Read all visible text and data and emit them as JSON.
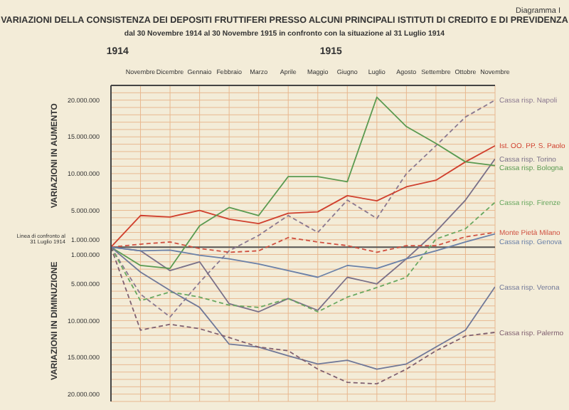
{
  "chart_data": {
    "type": "line",
    "title": "VARIAZIONI DELLA CONSISTENZA DEI DEPOSITI FRUTTIFERI PRESSO ALCUNI PRINCIPALI ISTITUTI DI CREDITO E DI PREVIDENZA",
    "subtitle": "dal 30 Novembre 1914 al 30 Novembre 1915 in confronto con la situazione al 31 Luglio 1914",
    "ylabel": "VARIAZIONI IN AUMENTO",
    "annotations": [
      "Diagramma I",
      "1914",
      "1915",
      "VARIAZIONI IN DIMINUZIONE"
    ],
    "categories": [
      null,
      "Novembre",
      "Dicembre",
      "Gennaio",
      "Febbraio",
      "Marzo",
      "Aprile",
      "Maggio",
      "Giugno",
      "Luglio",
      "Agosto",
      "Settembre",
      "Ottobre",
      "Novembre"
    ],
    "series": [
      {
        "name": "Cassa risp. Napoli",
        "color": "#8a7890",
        "line_style": "dashed",
        "values": [
          0,
          -6400000,
          -9500000,
          -4800000,
          -500000,
          1600000,
          4300000,
          2000000,
          6400000,
          3900000,
          10000000,
          13800000,
          17700000,
          20000000
        ]
      },
      {
        "name": "Ist. OO. PP. S. Paolo",
        "color": "#d0402e",
        "line_style": "solid",
        "values": [
          0,
          4300000,
          4100000,
          5000000,
          3800000,
          3200000,
          4600000,
          4800000,
          7000000,
          6300000,
          8200000,
          9100000,
          11600000,
          13800000
        ]
      },
      {
        "name": "Cassa risp. Torino",
        "color": "#7a7088",
        "line_style": "solid",
        "values": [
          0,
          -500000,
          -3200000,
          -2000000,
          -7700000,
          -8800000,
          -7000000,
          -8600000,
          -4100000,
          -5000000,
          -1600000,
          2100000,
          6400000,
          12000000
        ]
      },
      {
        "name": "Cassa risp. Bologna",
        "color": "#5a9a50",
        "line_style": "solid",
        "values": [
          0,
          -2500000,
          -2900000,
          2900000,
          5400000,
          4300000,
          9600000,
          9600000,
          8900000,
          20400000,
          16400000,
          14100000,
          11600000,
          11100000
        ]
      },
      {
        "name": "Cassa risp. Firenze",
        "color": "#6aa860",
        "line_style": "dashed",
        "values": [
          0,
          -7300000,
          -6100000,
          -6800000,
          -7900000,
          -8200000,
          -7000000,
          -8800000,
          -6800000,
          -5500000,
          -4100000,
          1100000,
          2500000,
          6100000
        ]
      },
      {
        "name": "Monte Pietà Milano",
        "color": "#d05040",
        "line_style": "dashed",
        "values": [
          0,
          400000,
          700000,
          -200000,
          -700000,
          -500000,
          1300000,
          700000,
          200000,
          -700000,
          200000,
          200000,
          1400000,
          2000000
        ]
      },
      {
        "name": "Cassa risp. Genova",
        "color": "#6a80a8",
        "line_style": "solid",
        "values": [
          0,
          -500000,
          -400000,
          -1100000,
          -1600000,
          -2300000,
          -3200000,
          -4100000,
          -2500000,
          -2900000,
          -1600000,
          -500000,
          700000,
          1800000
        ]
      },
      {
        "name": "Cassa risp. Verona",
        "color": "#707898",
        "line_style": "solid",
        "values": [
          0,
          -3400000,
          -5900000,
          -8200000,
          -13200000,
          -13600000,
          -14800000,
          -15900000,
          -15400000,
          -16600000,
          -15900000,
          -13600000,
          -11300000,
          -5400000
        ]
      },
      {
        "name": "Cassa risp. Palermo",
        "color": "#806070",
        "line_style": "dashed",
        "values": [
          0,
          -11300000,
          -10500000,
          -11100000,
          -12300000,
          -13600000,
          -14100000,
          -16600000,
          -18400000,
          -18600000,
          -16600000,
          -14100000,
          -12100000,
          -11600000
        ]
      }
    ],
    "ylim": [
      -21000000,
      22000000
    ],
    "yticks": [
      {
        "value": -21000000,
        "label": null
      },
      {
        "value": -20000000,
        "label": "20.000.000"
      },
      {
        "value": -19000000,
        "label": null
      },
      {
        "value": -18000000,
        "label": null
      },
      {
        "value": -17000000,
        "label": null
      },
      {
        "value": -16000000,
        "label": null
      },
      {
        "value": -15000000,
        "label": "15.000.000"
      },
      {
        "value": -14000000,
        "label": null
      },
      {
        "value": -13000000,
        "label": null
      },
      {
        "value": -12000000,
        "label": null
      },
      {
        "value": -11000000,
        "label": null
      },
      {
        "value": -10000000,
        "label": "10.000.000"
      },
      {
        "value": -9000000,
        "label": null
      },
      {
        "value": -8000000,
        "label": null
      },
      {
        "value": -7000000,
        "label": null
      },
      {
        "value": -6000000,
        "label": null
      },
      {
        "value": -5000000,
        "label": "5.000.000"
      },
      {
        "value": -4000000,
        "label": null
      },
      {
        "value": -3000000,
        "label": null
      },
      {
        "value": -2000000,
        "label": null
      },
      {
        "value": -1000000,
        "label": "1.000.000"
      },
      {
        "value": 0,
        "label": null
      },
      {
        "value": 1000000,
        "label": "1.000.000"
      },
      {
        "value": 2000000,
        "label": null
      },
      {
        "value": 3000000,
        "label": null
      },
      {
        "value": 4000000,
        "label": null
      },
      {
        "value": 5000000,
        "label": "5.000.000"
      },
      {
        "value": 6000000,
        "label": null
      },
      {
        "value": 7000000,
        "label": null
      },
      {
        "value": 8000000,
        "label": null
      },
      {
        "value": 9000000,
        "label": null
      },
      {
        "value": 10000000,
        "label": "10.000.000"
      },
      {
        "value": 11000000,
        "label": null
      },
      {
        "value": 12000000,
        "label": null
      },
      {
        "value": 13000000,
        "label": null
      },
      {
        "value": 14000000,
        "label": null
      },
      {
        "value": 15000000,
        "label": "15.000.000"
      },
      {
        "value": 16000000,
        "label": null
      },
      {
        "value": 17000000,
        "label": null
      },
      {
        "value": 18000000,
        "label": null
      },
      {
        "value": 19000000,
        "label": null
      },
      {
        "value": 20000000,
        "label": "20.000.000"
      },
      {
        "value": 21000000,
        "label": null
      },
      {
        "value": 22000000,
        "label": null
      }
    ],
    "ref_lines": [
      {
        "axis": "y",
        "value": 0,
        "label": "Linea di confronto al 31 Luglio 1914",
        "color": "#555555"
      }
    ],
    "grid": true
  }
}
